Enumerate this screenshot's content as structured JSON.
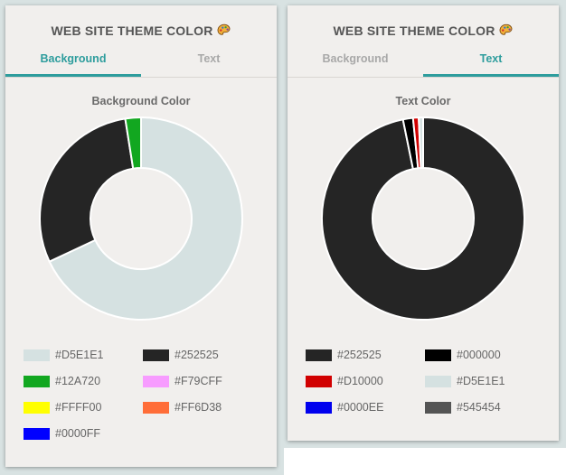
{
  "panels": [
    {
      "title": "WEB SITE THEME COLOR",
      "tabs": [
        {
          "label": "Background",
          "active": true
        },
        {
          "label": "Text",
          "active": false
        }
      ],
      "chart_data": {
        "type": "pie",
        "title": "Background Color",
        "labels": [
          "#D5E1E1",
          "#252525",
          "#12A720",
          "#F79CFF",
          "#FFFF00",
          "#FF6D38",
          "#0000FF"
        ],
        "values": [
          68,
          29.5,
          2.5,
          0,
          0,
          0,
          0
        ],
        "colors": [
          "#D5E1E1",
          "#252525",
          "#12A720",
          "#F79CFF",
          "#FFFF00",
          "#FF6D38",
          "#0000FF"
        ],
        "legend_position": "bottom"
      }
    },
    {
      "title": "WEB SITE THEME COLOR",
      "tabs": [
        {
          "label": "Background",
          "active": false
        },
        {
          "label": "Text",
          "active": true
        }
      ],
      "chart_data": {
        "type": "pie",
        "title": "Text Color",
        "labels": [
          "#252525",
          "#000000",
          "#D10000",
          "#D5E1E1",
          "#0000EE",
          "#545454"
        ],
        "values": [
          96.8,
          1.6,
          0.9,
          0.7,
          0,
          0
        ],
        "colors": [
          "#252525",
          "#000000",
          "#D10000",
          "#D5E1E1",
          "#0000EE",
          "#545454"
        ],
        "legend_position": "bottom"
      }
    }
  ],
  "icons": {
    "title_icon": "palette-icon"
  }
}
